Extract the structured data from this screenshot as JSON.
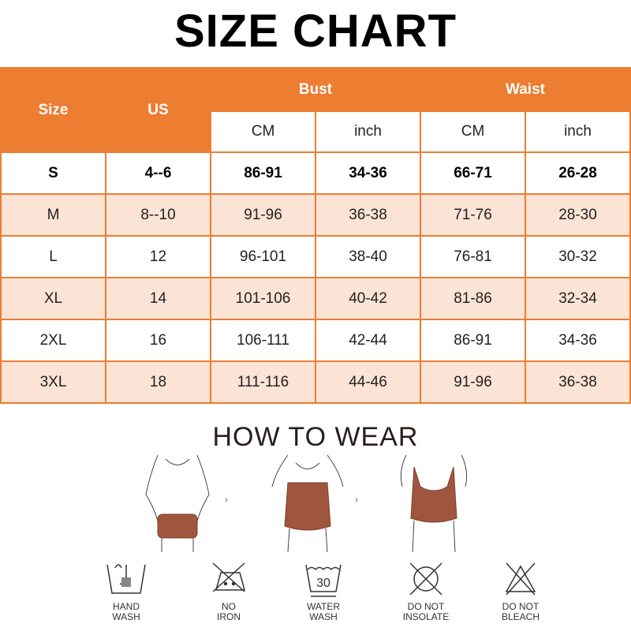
{
  "title": "SIZE CHART",
  "table": {
    "headers": {
      "size": "Size",
      "us": "US",
      "bust": "Bust",
      "waist": "Waist",
      "cm": "CM",
      "inch": "inch"
    },
    "rows": [
      [
        "S",
        "4--6",
        "86-91",
        "34-36",
        "66-71",
        "26-28"
      ],
      [
        "M",
        "8--10",
        "91-96",
        "36-38",
        "71-76",
        "28-30"
      ],
      [
        "L",
        "12",
        "96-101",
        "38-40",
        "76-81",
        "30-32"
      ],
      [
        "XL",
        "14",
        "101-106",
        "40-42",
        "81-86",
        "32-34"
      ],
      [
        "2XL",
        "16",
        "106-111",
        "42-44",
        "86-91",
        "34-36"
      ],
      [
        "3XL",
        "18",
        "111-116",
        "44-46",
        "91-96",
        "36-38"
      ]
    ]
  },
  "how_to_wear": "HOW TO WEAR",
  "care": [
    {
      "icon": "hand-wash-icon",
      "label": "HAND\nWASH"
    },
    {
      "icon": "no-iron-icon",
      "label": "NO\nIRON"
    },
    {
      "icon": "water-wash-30-icon",
      "label": "WATER\nWASH",
      "temp": "30"
    },
    {
      "icon": "do-not-insolate-icon",
      "label": "DO NOT\nINSOLATE"
    },
    {
      "icon": "do-not-bleach-icon",
      "label": "DO NOT\nBLEACH"
    }
  ],
  "colors": {
    "header": "#ED7D31",
    "alt_row": "#FBE4D5",
    "garment": "#A0563E"
  }
}
